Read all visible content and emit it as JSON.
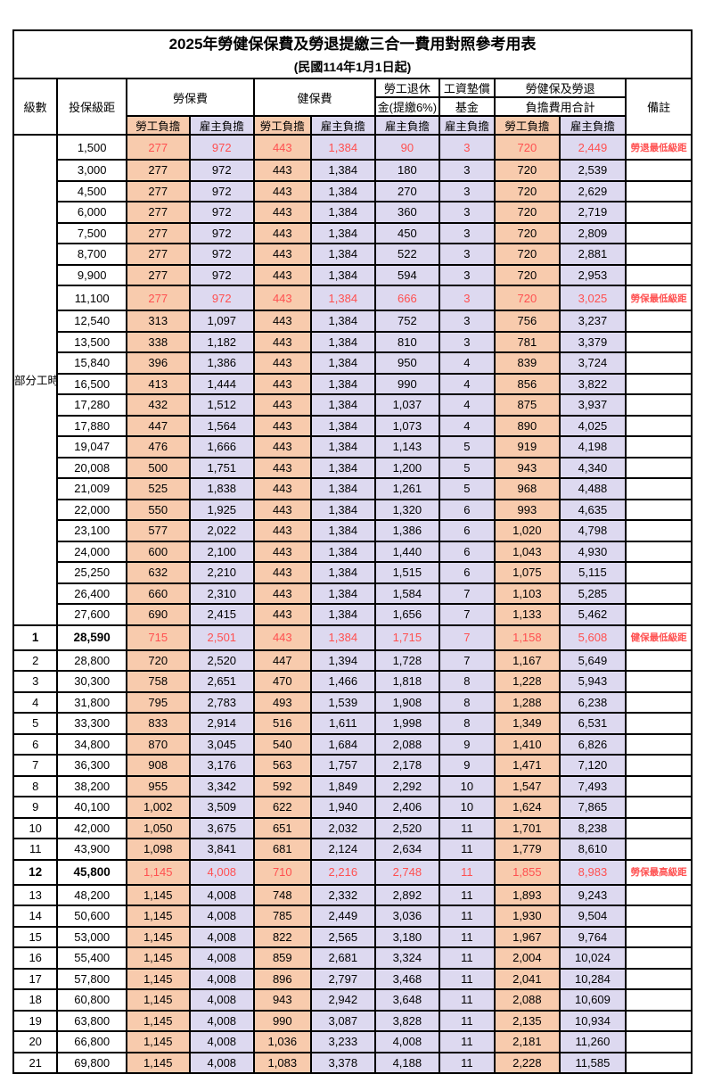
{
  "title": "2025年勞健保保費及勞退提繳三合一費用對照參考用表",
  "subtitle": "(民國114年1月1日起)",
  "header": {
    "level": "級數",
    "salary_bracket": "投保級距",
    "labor_insurance": "勞保費",
    "health_insurance": "健保費",
    "pension_line1": "勞工退休",
    "pension_line2": "金(提繳6%)",
    "wage_fund_line1": "工資墊償",
    "wage_fund_line2": "基金",
    "total_line1": "勞健保及勞退",
    "total_line2": "負擔費用合計",
    "remarks": "備註",
    "employee": "勞工負擔",
    "employer": "雇主負擔"
  },
  "part_time_label": "部分工時",
  "colors": {
    "employee_burden_bg": "#F8CBAD",
    "employer_burden_bg": "#DDD9F0",
    "highlight_text": "#FF5050",
    "border": "#000000"
  },
  "chart_data": {
    "type": "table",
    "title": "2025年勞健保保費及勞退提繳三合一費用對照參考用表",
    "columns": [
      "級數",
      "投保級距",
      "勞保費-勞工負擔",
      "勞保費-雇主負擔",
      "健保費-勞工負擔",
      "健保費-雇主負擔",
      "勞工退休金(提繳6%)-雇主負擔",
      "工資墊償基金-雇主負擔",
      "合計-勞工負擔",
      "合計-雇主負擔",
      "備註"
    ]
  },
  "rows": [
    {
      "level": "",
      "salary": "1,500",
      "cells": [
        "277",
        "972",
        "443",
        "1,384",
        "90",
        "3",
        "720",
        "2,449"
      ],
      "note": "勞退最低級距",
      "highlight": true,
      "emph": false
    },
    {
      "level": "",
      "salary": "3,000",
      "cells": [
        "277",
        "972",
        "443",
        "1,384",
        "180",
        "3",
        "720",
        "2,539"
      ],
      "note": "",
      "highlight": false,
      "emph": false
    },
    {
      "level": "",
      "salary": "4,500",
      "cells": [
        "277",
        "972",
        "443",
        "1,384",
        "270",
        "3",
        "720",
        "2,629"
      ],
      "note": "",
      "highlight": false,
      "emph": false
    },
    {
      "level": "",
      "salary": "6,000",
      "cells": [
        "277",
        "972",
        "443",
        "1,384",
        "360",
        "3",
        "720",
        "2,719"
      ],
      "note": "",
      "highlight": false,
      "emph": false
    },
    {
      "level": "",
      "salary": "7,500",
      "cells": [
        "277",
        "972",
        "443",
        "1,384",
        "450",
        "3",
        "720",
        "2,809"
      ],
      "note": "",
      "highlight": false,
      "emph": false
    },
    {
      "level": "",
      "salary": "8,700",
      "cells": [
        "277",
        "972",
        "443",
        "1,384",
        "522",
        "3",
        "720",
        "2,881"
      ],
      "note": "",
      "highlight": false,
      "emph": false
    },
    {
      "level": "",
      "salary": "9,900",
      "cells": [
        "277",
        "972",
        "443",
        "1,384",
        "594",
        "3",
        "720",
        "2,953"
      ],
      "note": "",
      "highlight": false,
      "emph": false
    },
    {
      "level": "",
      "salary": "11,100",
      "cells": [
        "277",
        "972",
        "443",
        "1,384",
        "666",
        "3",
        "720",
        "3,025"
      ],
      "note": "勞保最低級距",
      "highlight": true,
      "emph": false
    },
    {
      "level": "",
      "salary": "12,540",
      "cells": [
        "313",
        "1,097",
        "443",
        "1,384",
        "752",
        "3",
        "756",
        "3,237"
      ],
      "note": "",
      "highlight": false,
      "emph": false
    },
    {
      "level": "",
      "salary": "13,500",
      "cells": [
        "338",
        "1,182",
        "443",
        "1,384",
        "810",
        "3",
        "781",
        "3,379"
      ],
      "note": "",
      "highlight": false,
      "emph": false
    },
    {
      "level": "",
      "salary": "15,840",
      "cells": [
        "396",
        "1,386",
        "443",
        "1,384",
        "950",
        "4",
        "839",
        "3,724"
      ],
      "note": "",
      "highlight": false,
      "emph": false
    },
    {
      "level": "",
      "salary": "16,500",
      "cells": [
        "413",
        "1,444",
        "443",
        "1,384",
        "990",
        "4",
        "856",
        "3,822"
      ],
      "note": "",
      "highlight": false,
      "emph": false
    },
    {
      "level": "",
      "salary": "17,280",
      "cells": [
        "432",
        "1,512",
        "443",
        "1,384",
        "1,037",
        "4",
        "875",
        "3,937"
      ],
      "note": "",
      "highlight": false,
      "emph": false
    },
    {
      "level": "",
      "salary": "17,880",
      "cells": [
        "447",
        "1,564",
        "443",
        "1,384",
        "1,073",
        "4",
        "890",
        "4,025"
      ],
      "note": "",
      "highlight": false,
      "emph": false
    },
    {
      "level": "",
      "salary": "19,047",
      "cells": [
        "476",
        "1,666",
        "443",
        "1,384",
        "1,143",
        "5",
        "919",
        "4,198"
      ],
      "note": "",
      "highlight": false,
      "emph": false
    },
    {
      "level": "",
      "salary": "20,008",
      "cells": [
        "500",
        "1,751",
        "443",
        "1,384",
        "1,200",
        "5",
        "943",
        "4,340"
      ],
      "note": "",
      "highlight": false,
      "emph": false
    },
    {
      "level": "",
      "salary": "21,009",
      "cells": [
        "525",
        "1,838",
        "443",
        "1,384",
        "1,261",
        "5",
        "968",
        "4,488"
      ],
      "note": "",
      "highlight": false,
      "emph": false
    },
    {
      "level": "",
      "salary": "22,000",
      "cells": [
        "550",
        "1,925",
        "443",
        "1,384",
        "1,320",
        "6",
        "993",
        "4,635"
      ],
      "note": "",
      "highlight": false,
      "emph": false
    },
    {
      "level": "",
      "salary": "23,100",
      "cells": [
        "577",
        "2,022",
        "443",
        "1,384",
        "1,386",
        "6",
        "1,020",
        "4,798"
      ],
      "note": "",
      "highlight": false,
      "emph": false
    },
    {
      "level": "",
      "salary": "24,000",
      "cells": [
        "600",
        "2,100",
        "443",
        "1,384",
        "1,440",
        "6",
        "1,043",
        "4,930"
      ],
      "note": "",
      "highlight": false,
      "emph": false
    },
    {
      "level": "",
      "salary": "25,250",
      "cells": [
        "632",
        "2,210",
        "443",
        "1,384",
        "1,515",
        "6",
        "1,075",
        "5,115"
      ],
      "note": "",
      "highlight": false,
      "emph": false
    },
    {
      "level": "",
      "salary": "26,400",
      "cells": [
        "660",
        "2,310",
        "443",
        "1,384",
        "1,584",
        "7",
        "1,103",
        "5,285"
      ],
      "note": "",
      "highlight": false,
      "emph": false
    },
    {
      "level": "",
      "salary": "27,600",
      "cells": [
        "690",
        "2,415",
        "443",
        "1,384",
        "1,656",
        "7",
        "1,133",
        "5,462"
      ],
      "note": "",
      "highlight": false,
      "emph": false
    },
    {
      "level": "1",
      "salary": "28,590",
      "cells": [
        "715",
        "2,501",
        "443",
        "1,384",
        "1,715",
        "7",
        "1,158",
        "5,608"
      ],
      "note": "健保最低級距",
      "highlight": true,
      "emph": true
    },
    {
      "level": "2",
      "salary": "28,800",
      "cells": [
        "720",
        "2,520",
        "447",
        "1,394",
        "1,728",
        "7",
        "1,167",
        "5,649"
      ],
      "note": "",
      "highlight": false,
      "emph": false
    },
    {
      "level": "3",
      "salary": "30,300",
      "cells": [
        "758",
        "2,651",
        "470",
        "1,466",
        "1,818",
        "8",
        "1,228",
        "5,943"
      ],
      "note": "",
      "highlight": false,
      "emph": false
    },
    {
      "level": "4",
      "salary": "31,800",
      "cells": [
        "795",
        "2,783",
        "493",
        "1,539",
        "1,908",
        "8",
        "1,288",
        "6,238"
      ],
      "note": "",
      "highlight": false,
      "emph": false
    },
    {
      "level": "5",
      "salary": "33,300",
      "cells": [
        "833",
        "2,914",
        "516",
        "1,611",
        "1,998",
        "8",
        "1,349",
        "6,531"
      ],
      "note": "",
      "highlight": false,
      "emph": false
    },
    {
      "level": "6",
      "salary": "34,800",
      "cells": [
        "870",
        "3,045",
        "540",
        "1,684",
        "2,088",
        "9",
        "1,410",
        "6,826"
      ],
      "note": "",
      "highlight": false,
      "emph": false
    },
    {
      "level": "7",
      "salary": "36,300",
      "cells": [
        "908",
        "3,176",
        "563",
        "1,757",
        "2,178",
        "9",
        "1,471",
        "7,120"
      ],
      "note": "",
      "highlight": false,
      "emph": false
    },
    {
      "level": "8",
      "salary": "38,200",
      "cells": [
        "955",
        "3,342",
        "592",
        "1,849",
        "2,292",
        "10",
        "1,547",
        "7,493"
      ],
      "note": "",
      "highlight": false,
      "emph": false
    },
    {
      "level": "9",
      "salary": "40,100",
      "cells": [
        "1,002",
        "3,509",
        "622",
        "1,940",
        "2,406",
        "10",
        "1,624",
        "7,865"
      ],
      "note": "",
      "highlight": false,
      "emph": false
    },
    {
      "level": "10",
      "salary": "42,000",
      "cells": [
        "1,050",
        "3,675",
        "651",
        "2,032",
        "2,520",
        "11",
        "1,701",
        "8,238"
      ],
      "note": "",
      "highlight": false,
      "emph": false
    },
    {
      "level": "11",
      "salary": "43,900",
      "cells": [
        "1,098",
        "3,841",
        "681",
        "2,124",
        "2,634",
        "11",
        "1,779",
        "8,610"
      ],
      "note": "",
      "highlight": false,
      "emph": false
    },
    {
      "level": "12",
      "salary": "45,800",
      "cells": [
        "1,145",
        "4,008",
        "710",
        "2,216",
        "2,748",
        "11",
        "1,855",
        "8,983"
      ],
      "note": "勞保最高級距",
      "highlight": true,
      "emph": true
    },
    {
      "level": "13",
      "salary": "48,200",
      "cells": [
        "1,145",
        "4,008",
        "748",
        "2,332",
        "2,892",
        "11",
        "1,893",
        "9,243"
      ],
      "note": "",
      "highlight": false,
      "emph": false
    },
    {
      "level": "14",
      "salary": "50,600",
      "cells": [
        "1,145",
        "4,008",
        "785",
        "2,449",
        "3,036",
        "11",
        "1,930",
        "9,504"
      ],
      "note": "",
      "highlight": false,
      "emph": false
    },
    {
      "level": "15",
      "salary": "53,000",
      "cells": [
        "1,145",
        "4,008",
        "822",
        "2,565",
        "3,180",
        "11",
        "1,967",
        "9,764"
      ],
      "note": "",
      "highlight": false,
      "emph": false
    },
    {
      "level": "16",
      "salary": "55,400",
      "cells": [
        "1,145",
        "4,008",
        "859",
        "2,681",
        "3,324",
        "11",
        "2,004",
        "10,024"
      ],
      "note": "",
      "highlight": false,
      "emph": false
    },
    {
      "level": "17",
      "salary": "57,800",
      "cells": [
        "1,145",
        "4,008",
        "896",
        "2,797",
        "3,468",
        "11",
        "2,041",
        "10,284"
      ],
      "note": "",
      "highlight": false,
      "emph": false
    },
    {
      "level": "18",
      "salary": "60,800",
      "cells": [
        "1,145",
        "4,008",
        "943",
        "2,942",
        "3,648",
        "11",
        "2,088",
        "10,609"
      ],
      "note": "",
      "highlight": false,
      "emph": false
    },
    {
      "level": "19",
      "salary": "63,800",
      "cells": [
        "1,145",
        "4,008",
        "990",
        "3,087",
        "3,828",
        "11",
        "2,135",
        "10,934"
      ],
      "note": "",
      "highlight": false,
      "emph": false
    },
    {
      "level": "20",
      "salary": "66,800",
      "cells": [
        "1,145",
        "4,008",
        "1,036",
        "3,233",
        "4,008",
        "11",
        "2,181",
        "11,260"
      ],
      "note": "",
      "highlight": false,
      "emph": false
    },
    {
      "level": "21",
      "salary": "69,800",
      "cells": [
        "1,145",
        "4,008",
        "1,083",
        "3,378",
        "4,188",
        "11",
        "2,228",
        "11,585"
      ],
      "note": "",
      "highlight": false,
      "emph": false
    }
  ]
}
